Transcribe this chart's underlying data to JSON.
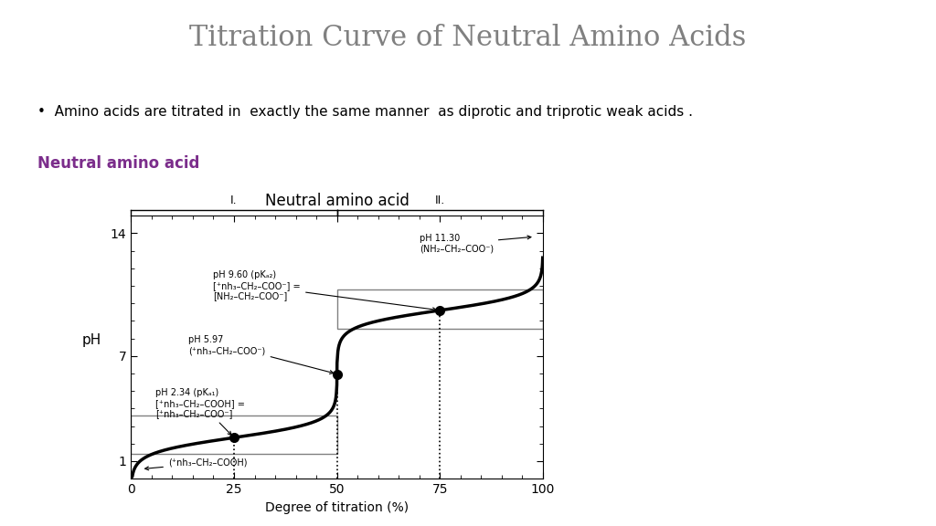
{
  "title": "Titration Curve of Neutral Amino Acids",
  "title_color": "#808080",
  "bullet_text": "Amino acids are titrated in  exactly the same manner  as diprotic and triprotic weak acids .",
  "subtitle_text": "Neutral amino acid",
  "subtitle_color": "#7B2D8B",
  "chart_title": "Neutral amino acid",
  "xlabel": "Degree of titration (%)",
  "ylabel": "pH",
  "xlim": [
    0,
    100
  ],
  "ylim": [
    0,
    15
  ],
  "yticks": [
    1,
    7,
    14
  ],
  "xticks": [
    0,
    25,
    50,
    75,
    100
  ],
  "background_color": "#FFFFFF",
  "curve_color": "#000000",
  "pka1": 2.34,
  "pka2": 9.6,
  "pI": 5.97
}
